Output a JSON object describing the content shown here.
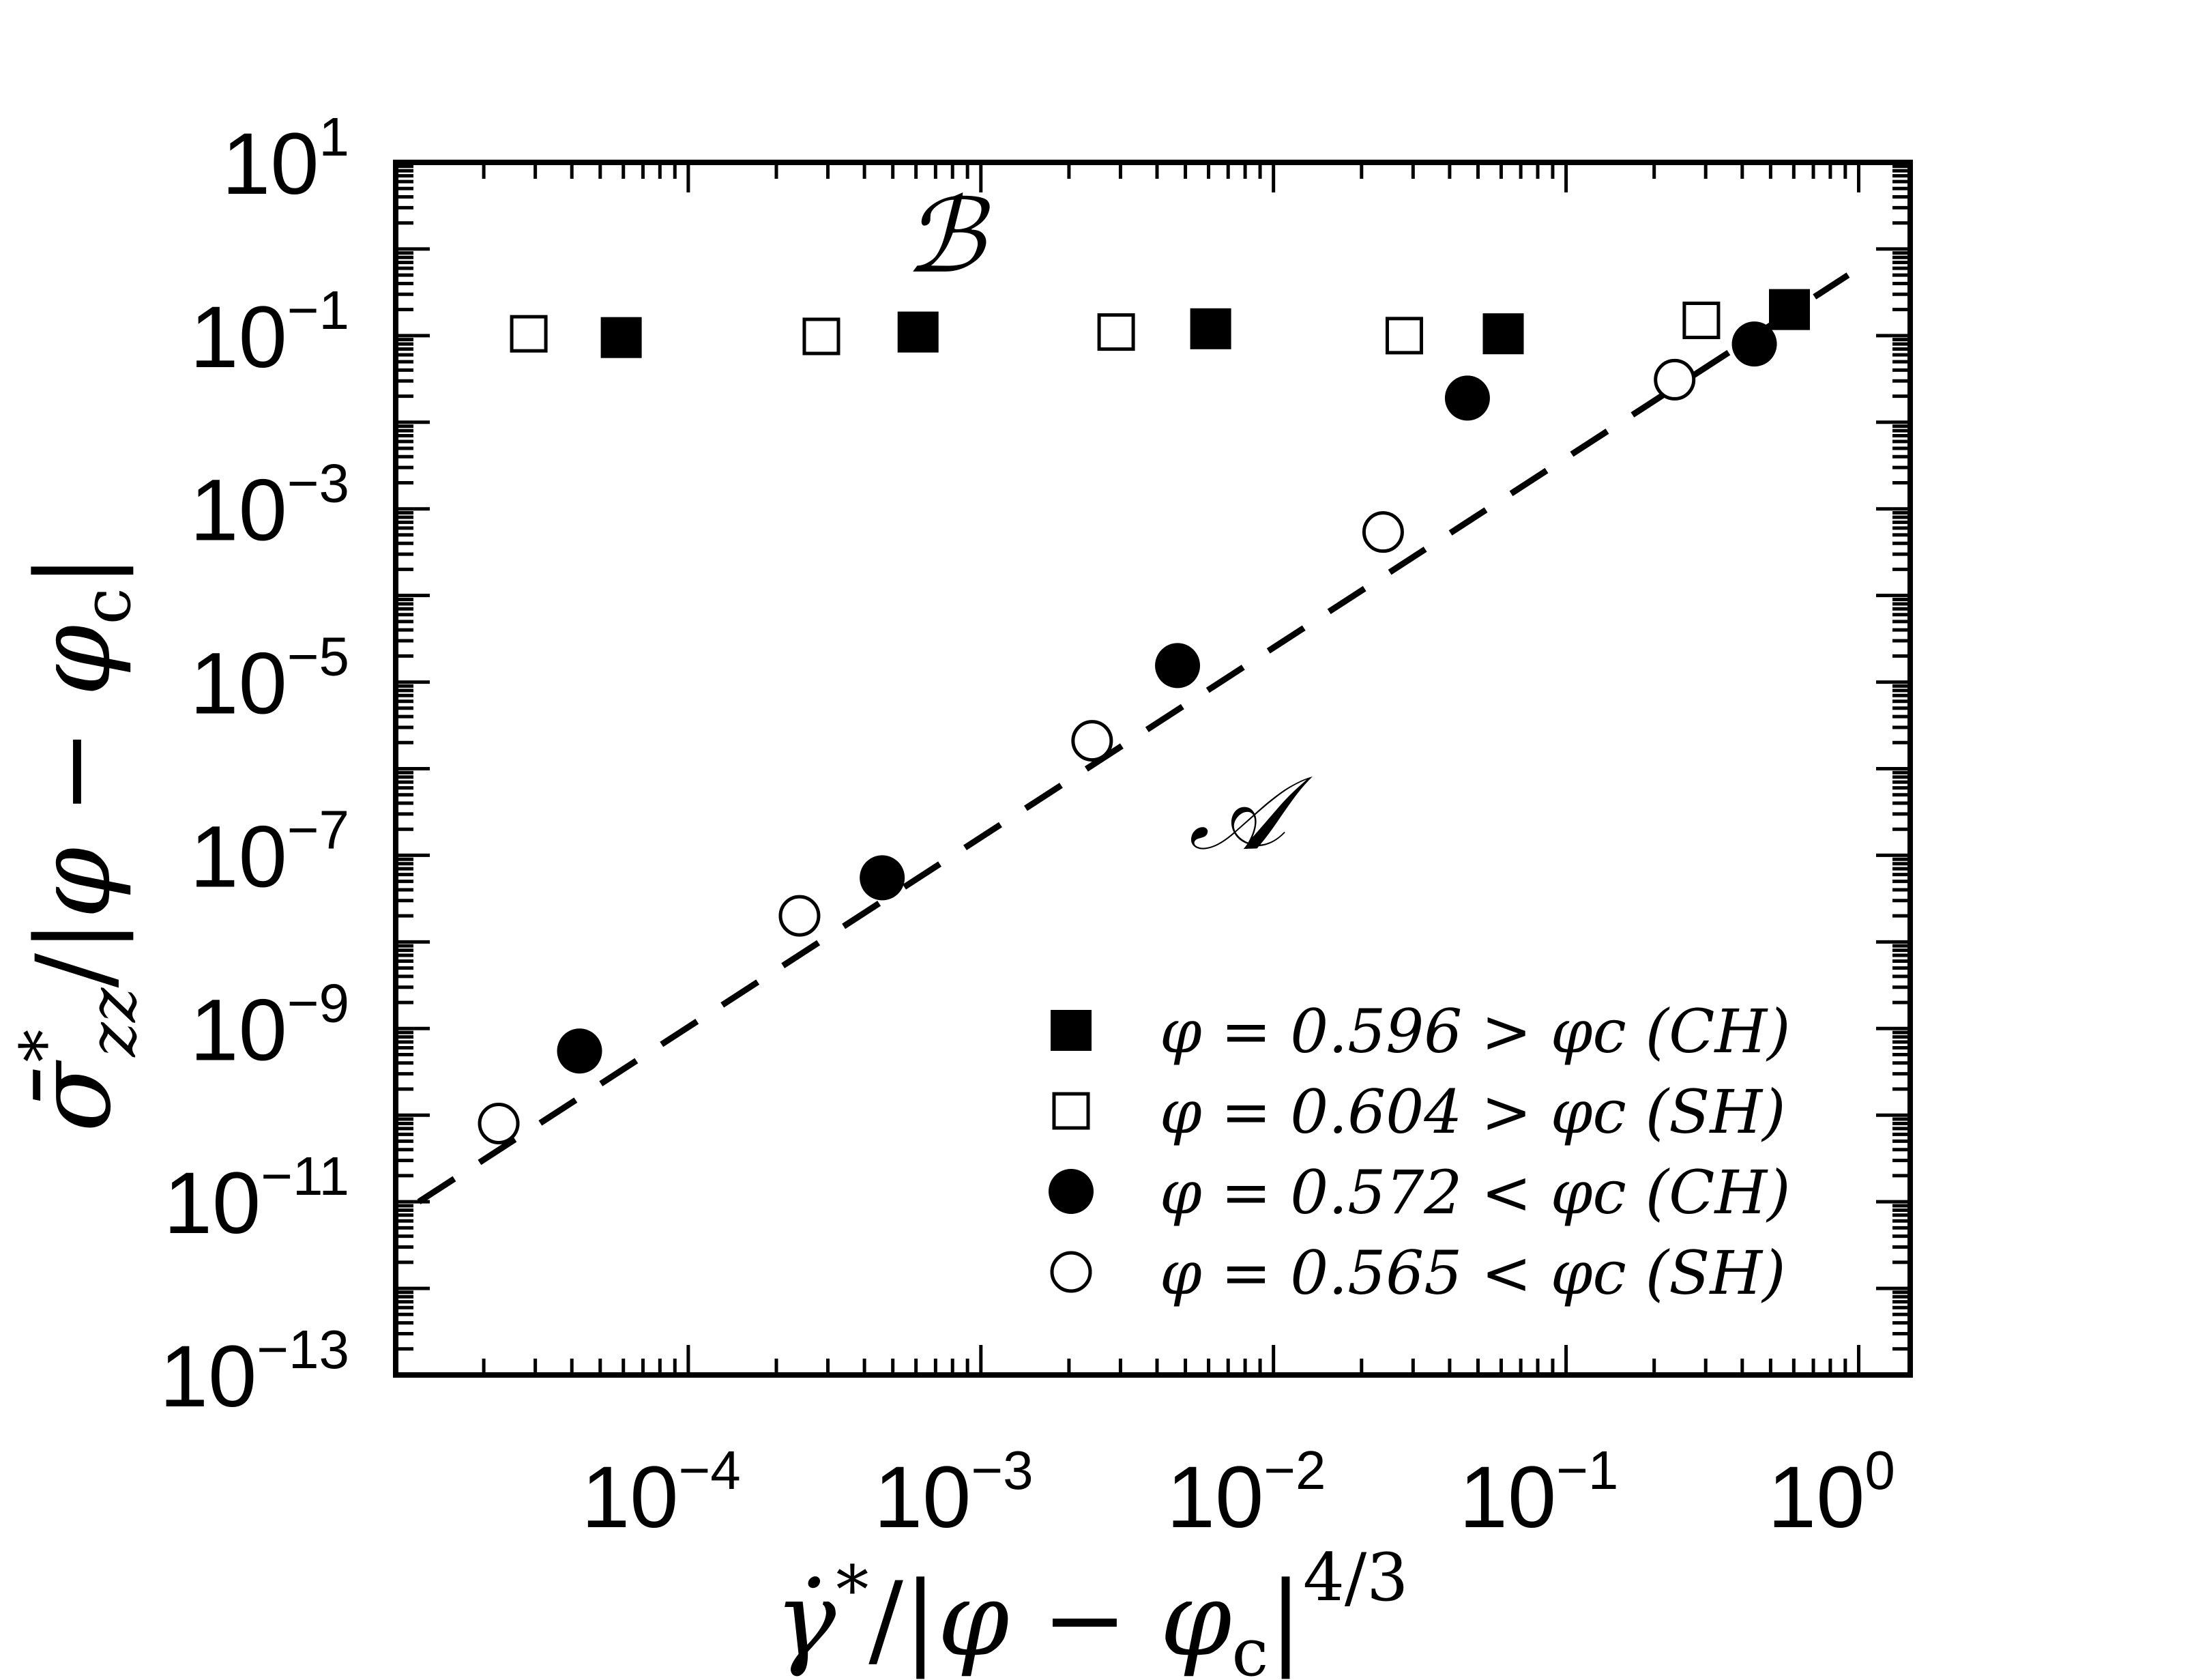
{
  "chart_data": {
    "type": "scatter",
    "title": "",
    "xlabel": "γ̇*/|φ − φc|4/3",
    "ylabel": "σ̄*zz/|φ − φc|",
    "xscale": "log",
    "yscale": "log",
    "xlim": [
      1e-05,
      1.5
    ],
    "ylim": [
      1e-13,
      10
    ],
    "x_ticks": [
      {
        "value": 0.0001,
        "base": "10",
        "exp": "−4"
      },
      {
        "value": 0.001,
        "base": "10",
        "exp": "−3"
      },
      {
        "value": 0.01,
        "base": "10",
        "exp": "−2"
      },
      {
        "value": 0.1,
        "base": "10",
        "exp": "−1"
      },
      {
        "value": 1,
        "base": "10",
        "exp": "0"
      }
    ],
    "y_ticks": [
      {
        "value": 10,
        "base": "10",
        "exp": "1"
      },
      {
        "value": 0.1,
        "base": "10",
        "exp": "−1"
      },
      {
        "value": 0.001,
        "base": "10",
        "exp": "−3"
      },
      {
        "value": 1e-05,
        "base": "10",
        "exp": "−5"
      },
      {
        "value": 1e-07,
        "base": "10",
        "exp": "−7"
      },
      {
        "value": 1e-09,
        "base": "10",
        "exp": "−9"
      },
      {
        "value": 1e-11,
        "base": "10",
        "exp": "−11"
      },
      {
        "value": 1e-13,
        "base": "10",
        "exp": "−13"
      }
    ],
    "grid": false,
    "legend_position": "bottom-right",
    "series": [
      {
        "name": "φ = 0.596 > φc (CH)",
        "marker": "filled-square",
        "x": [
          5.9e-05,
          0.00061,
          0.0061,
          0.061,
          0.58
        ],
        "y": [
          0.095,
          0.11,
          0.12,
          0.105,
          0.2
        ]
      },
      {
        "name": "φ = 0.604 > φc (SH)",
        "marker": "open-square",
        "x": [
          2.85e-05,
          0.000285,
          0.0029,
          0.028,
          0.29
        ],
        "y": [
          0.105,
          0.098,
          0.11,
          0.1,
          0.15
        ]
      },
      {
        "name": "φ = 0.572 < φc (CH)",
        "marker": "filled-circle",
        "x": [
          4.25e-05,
          0.00046,
          0.0047,
          0.046,
          0.44
        ],
        "y": [
          5.5e-10,
          5.5e-08,
          1.55e-05,
          0.019,
          0.08
        ]
      },
      {
        "name": "φ = 0.565 < φc (SH)",
        "marker": "open-circle",
        "x": [
          2.25e-05,
          0.00024,
          0.0024,
          0.0237,
          0.235
        ],
        "y": [
          8e-11,
          2e-08,
          2.1e-06,
          0.00054,
          0.031
        ]
      }
    ],
    "dashed_line": {
      "x": [
        1.2e-05,
        0.92
      ],
      "y": [
        1e-11,
        0.5
      ]
    },
    "annotations": [
      {
        "text": "ℬ",
        "x": 0.00075,
        "y": 0.55
      },
      {
        "text": "𝒜",
        "x": 0.0075,
        "y": 1.2e-07
      }
    ],
    "colors": {
      "ink": "#000000",
      "background": "#ffffff"
    }
  }
}
